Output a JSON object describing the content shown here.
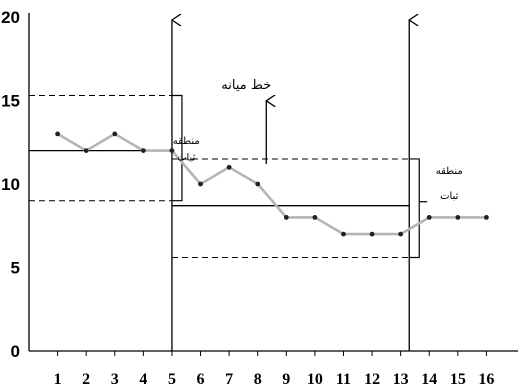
{
  "chart_data": {
    "type": "line",
    "title": "",
    "xlabel": "",
    "ylabel": "",
    "x": [
      1,
      2,
      3,
      4,
      5,
      6,
      7,
      8,
      9,
      10,
      11,
      12,
      13,
      14,
      15,
      16
    ],
    "x_tick_labels": [
      "1",
      "2",
      "3",
      "4",
      "5",
      "6",
      "7",
      "8",
      "9",
      "10",
      "11",
      "12",
      "13",
      "14",
      "15",
      "16"
    ],
    "y_tick_labels": [
      "0",
      "5",
      "10",
      "15",
      "20"
    ],
    "xlim": [
      0,
      16.3
    ],
    "ylim": [
      0,
      20
    ],
    "grid": false,
    "series": [
      {
        "values": [
          13,
          12,
          13,
          12,
          12,
          10,
          11,
          10,
          8,
          8,
          7,
          7,
          7,
          8,
          8,
          8
        ],
        "color": "#b5b5b5",
        "marker_color": "#222222"
      }
    ],
    "phases": [
      {
        "x_start": 0,
        "x_end": 5,
        "center": 12,
        "upper": 15.3,
        "lower": 9
      },
      {
        "x_start": 5,
        "x_end": 13.3,
        "center": 8.7,
        "upper": 11.5,
        "lower": 5.6
      }
    ],
    "phase_change_lines": [
      5,
      13.3
    ],
    "annotations": [
      {
        "text": "خط میانه",
        "x": 7.6,
        "y": 15.7,
        "arrow_to_y": 11.2
      },
      {
        "text": "منطقه",
        "x": 5.5,
        "y": 12.4
      },
      {
        "text": "ثبات",
        "x": 5.5,
        "y": 11.4
      },
      {
        "text": "منطقه",
        "x": 14.7,
        "y": 10.6
      },
      {
        "text": "ثبات",
        "x": 14.7,
        "y": 9.1
      }
    ]
  }
}
